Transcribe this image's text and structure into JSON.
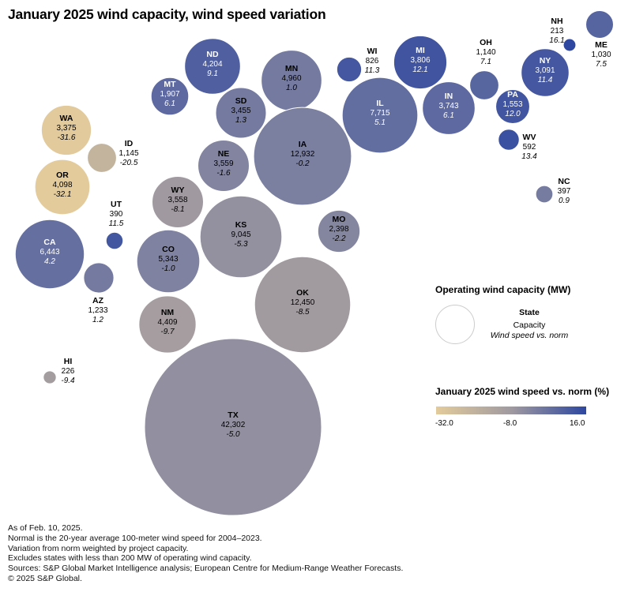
{
  "title": "January 2025 wind capacity, wind speed variation",
  "chart_data": {
    "type": "bubble",
    "title": "January 2025 wind capacity, wind speed variation",
    "size_variable": "Operating wind capacity (MW)",
    "color_variable": "January 2025 wind speed vs. norm (%)",
    "color_scale": {
      "min": -32.0,
      "mid": -8.0,
      "max": 16.0,
      "min_color": "#e3cb9c",
      "mid_color": "#a09aa0",
      "max_color": "#2e47a0",
      "tick_labels": [
        "-32.0",
        "-8.0",
        "16.0"
      ]
    },
    "points": [
      {
        "state": "NH",
        "capacity": 213,
        "capacity_label": "213",
        "variation": 16.1,
        "variation_label": "16.1"
      },
      {
        "state": "ME",
        "capacity": 1030,
        "capacity_label": "1,030",
        "variation": 7.5,
        "variation_label": "7.5"
      },
      {
        "state": "ND",
        "capacity": 4204,
        "capacity_label": "4,204",
        "variation": 9.1,
        "variation_label": "9.1"
      },
      {
        "state": "MN",
        "capacity": 4960,
        "capacity_label": "4,960",
        "variation": 1.0,
        "variation_label": "1.0"
      },
      {
        "state": "WI",
        "capacity": 826,
        "capacity_label": "826",
        "variation": 11.3,
        "variation_label": "11.3"
      },
      {
        "state": "MI",
        "capacity": 3806,
        "capacity_label": "3,806",
        "variation": 12.1,
        "variation_label": "12.1"
      },
      {
        "state": "OH",
        "capacity": 1140,
        "capacity_label": "1,140",
        "variation": 7.1,
        "variation_label": "7.1"
      },
      {
        "state": "NY",
        "capacity": 3091,
        "capacity_label": "3,091",
        "variation": 11.4,
        "variation_label": "11.4"
      },
      {
        "state": "MT",
        "capacity": 1907,
        "capacity_label": "1,907",
        "variation": 6.1,
        "variation_label": "6.1"
      },
      {
        "state": "SD",
        "capacity": 3455,
        "capacity_label": "3,455",
        "variation": 1.3,
        "variation_label": "1.3"
      },
      {
        "state": "IL",
        "capacity": 7715,
        "capacity_label": "7,715",
        "variation": 5.1,
        "variation_label": "5.1"
      },
      {
        "state": "IN",
        "capacity": 3743,
        "capacity_label": "3,743",
        "variation": 6.1,
        "variation_label": "6.1"
      },
      {
        "state": "PA",
        "capacity": 1553,
        "capacity_label": "1,553",
        "variation": 12.0,
        "variation_label": "12.0"
      },
      {
        "state": "WV",
        "capacity": 592,
        "capacity_label": "592",
        "variation": 13.4,
        "variation_label": "13.4"
      },
      {
        "state": "WA",
        "capacity": 3375,
        "capacity_label": "3,375",
        "variation": -31.6,
        "variation_label": "-31.6"
      },
      {
        "state": "ID",
        "capacity": 1145,
        "capacity_label": "1,145",
        "variation": -20.5,
        "variation_label": "-20.5"
      },
      {
        "state": "NE",
        "capacity": 3559,
        "capacity_label": "3,559",
        "variation": -1.6,
        "variation_label": "-1.6"
      },
      {
        "state": "IA",
        "capacity": 12932,
        "capacity_label": "12,932",
        "variation": -0.2,
        "variation_label": "-0.2"
      },
      {
        "state": "NC",
        "capacity": 397,
        "capacity_label": "397",
        "variation": 0.9,
        "variation_label": "0.9"
      },
      {
        "state": "OR",
        "capacity": 4098,
        "capacity_label": "4,098",
        "variation": -32.1,
        "variation_label": "-32.1"
      },
      {
        "state": "WY",
        "capacity": 3558,
        "capacity_label": "3,558",
        "variation": -8.1,
        "variation_label": "-8.1"
      },
      {
        "state": "UT",
        "capacity": 390,
        "capacity_label": "390",
        "variation": 11.5,
        "variation_label": "11.5"
      },
      {
        "state": "KS",
        "capacity": 9045,
        "capacity_label": "9,045",
        "variation": -5.3,
        "variation_label": "-5.3"
      },
      {
        "state": "MO",
        "capacity": 2398,
        "capacity_label": "2,398",
        "variation": -2.2,
        "variation_label": "-2.2"
      },
      {
        "state": "CA",
        "capacity": 6443,
        "capacity_label": "6,443",
        "variation": 4.2,
        "variation_label": "4.2"
      },
      {
        "state": "CO",
        "capacity": 5343,
        "capacity_label": "5,343",
        "variation": -1.0,
        "variation_label": "-1.0"
      },
      {
        "state": "AZ",
        "capacity": 1233,
        "capacity_label": "1,233",
        "variation": 1.2,
        "variation_label": "1.2"
      },
      {
        "state": "OK",
        "capacity": 12450,
        "capacity_label": "12,450",
        "variation": -8.5,
        "variation_label": "-8.5"
      },
      {
        "state": "NM",
        "capacity": 4409,
        "capacity_label": "4,409",
        "variation": -9.7,
        "variation_label": "-9.7"
      },
      {
        "state": "HI",
        "capacity": 226,
        "capacity_label": "226",
        "variation": -9.4,
        "variation_label": "-9.4"
      },
      {
        "state": "TX",
        "capacity": 42302,
        "capacity_label": "42,302",
        "variation": -5.0,
        "variation_label": "-5.0"
      }
    ]
  },
  "legend": {
    "size_title": "Operating wind capacity (MW)",
    "key_state": "State",
    "key_capacity": "Capacity",
    "key_variation": "Wind speed vs. norm",
    "color_title": "January 2025 wind speed vs. norm (%)",
    "ticks": [
      "-32.0",
      "-8.0",
      "16.0"
    ]
  },
  "notes": [
    "As of Feb. 10, 2025.",
    "Normal is the 20-year average 100-meter wind speed for 2004–2023.",
    "Variation from norm weighted by project capacity.",
    "Excludes states with less than 200 MW of operating wind capacity.",
    "Sources: S&P Global Market Intelligence analysis; European Centre for Medium-Range Weather Forecasts.",
    "© 2025 S&P Global."
  ]
}
